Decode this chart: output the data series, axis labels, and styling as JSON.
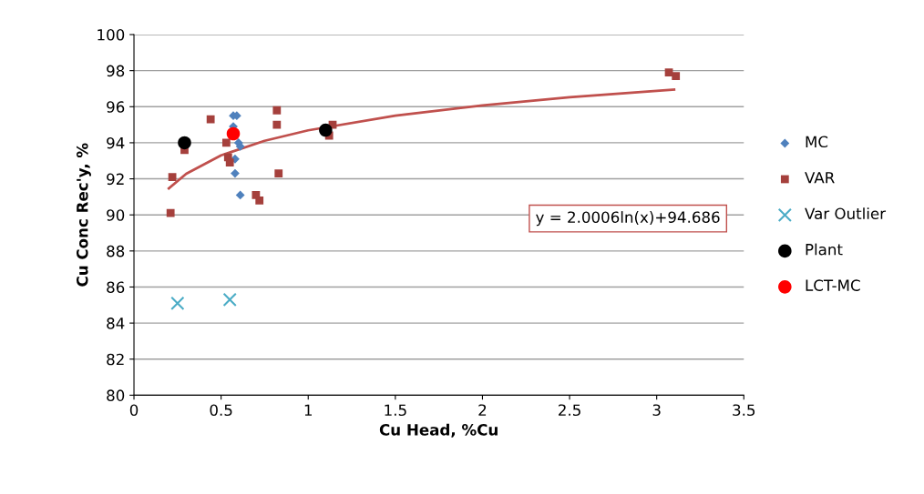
{
  "chart_data": {
    "type": "scatter",
    "xlabel": "Cu Head, %Cu",
    "ylabel": "Cu Conc Rec'y, %",
    "xlim": [
      0,
      3.5
    ],
    "xticks": [
      0,
      0.5,
      1,
      1.5,
      2,
      2.5,
      3,
      3.5
    ],
    "ylim": [
      80,
      100
    ],
    "yticks": [
      80,
      82,
      84,
      86,
      88,
      90,
      92,
      94,
      96,
      98,
      100
    ],
    "grid": "y",
    "legend": "right",
    "annotations": [
      "y = 2.0006ln(x)+94.686"
    ],
    "series": [
      {
        "name": "MC",
        "color": "#4f81bd",
        "marker": "diamond",
        "x": [
          0.57,
          0.59,
          0.57,
          0.6,
          0.61,
          0.58,
          0.58,
          0.61
        ],
        "values": [
          95.5,
          95.5,
          94.9,
          94.0,
          93.8,
          93.1,
          92.3,
          91.1
        ]
      },
      {
        "name": "VAR",
        "color": "#a5403c",
        "marker": "square",
        "x": [
          0.21,
          0.22,
          0.29,
          0.44,
          0.53,
          0.54,
          0.55,
          0.7,
          0.72,
          0.82,
          0.82,
          0.83,
          1.12,
          1.14,
          3.07,
          3.11
        ],
        "values": [
          90.1,
          92.1,
          93.6,
          95.3,
          94.0,
          93.2,
          92.9,
          91.1,
          90.8,
          95.8,
          95.0,
          92.3,
          94.4,
          95.0,
          97.9,
          97.7
        ]
      },
      {
        "name": "Var Outlier",
        "color": "#4bacc6",
        "marker": "cross",
        "x": [
          0.25,
          0.55
        ],
        "values": [
          85.1,
          85.3
        ]
      },
      {
        "name": "Plant",
        "color": "#000000",
        "marker": "circle",
        "x": [
          0.29,
          1.1
        ],
        "values": [
          94.0,
          94.7
        ]
      },
      {
        "name": "LCT-MC",
        "color": "#ff0000",
        "marker": "circle",
        "x": [
          0.57
        ],
        "values": [
          94.5
        ]
      },
      {
        "type": "line",
        "color": "#c0504d",
        "marker": "none",
        "x": [
          0.2,
          0.3,
          0.5,
          0.75,
          1,
          1.5,
          2,
          2.5,
          3.1
        ],
        "values": [
          91.47,
          92.28,
          93.3,
          94.11,
          94.69,
          95.5,
          96.07,
          96.52,
          96.95
        ]
      }
    ]
  }
}
